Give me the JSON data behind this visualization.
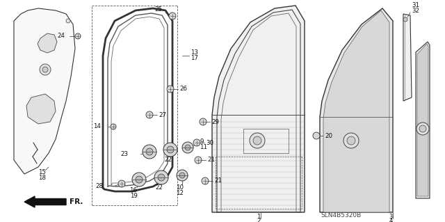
{
  "bg_color": "#ffffff",
  "diagram_code": "SLN4B5320B",
  "line_color": "#222222",
  "light_gray": "#cccccc",
  "mid_gray": "#999999"
}
